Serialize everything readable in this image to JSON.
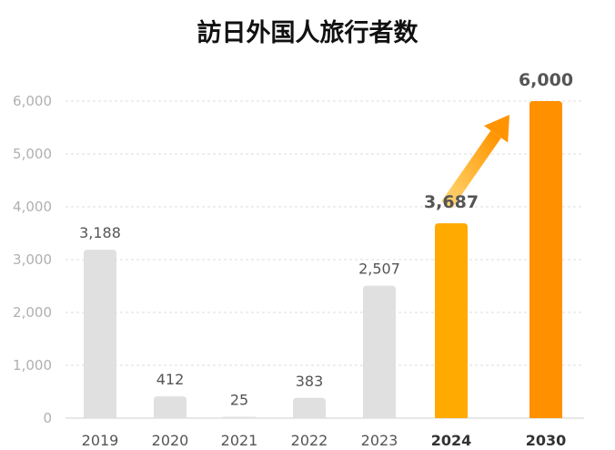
{
  "chart_data": {
    "type": "bar",
    "title": "訪日外国人旅行者数",
    "xlabel": "",
    "ylabel": "",
    "ylim": [
      0,
      6000
    ],
    "yticks": [
      0,
      1000,
      2000,
      3000,
      4000,
      5000,
      6000
    ],
    "ytick_labels": [
      "0",
      "1,000",
      "2,000",
      "3,000",
      "4,000",
      "5,000",
      "6,000"
    ],
    "grid": true,
    "categories": [
      "2019",
      "2020",
      "2021",
      "2022",
      "2023",
      "2024",
      "2030"
    ],
    "values": [
      3188,
      412,
      25,
      383,
      2507,
      3687,
      6000
    ],
    "value_labels": [
      "3,188",
      "412",
      "25",
      "383",
      "2,507",
      "3,687",
      "6,000"
    ],
    "highlight_categories": [
      "2024",
      "2030"
    ],
    "colors": {
      "default_bar": "#e0e0e0",
      "bar_2024": "#ffaa00",
      "bar_2030": "#ff9000",
      "label_2024": "#ffaa00",
      "label_2030": "#ff9000",
      "grid": "#dddddd",
      "axis": "#cfcfcf",
      "arrow_start": "#ffb000",
      "arrow_end": "#ff9400"
    },
    "annotations": [
      {
        "type": "arrow",
        "from": "2024",
        "to": "2030",
        "description": "growth-arrow"
      }
    ]
  }
}
